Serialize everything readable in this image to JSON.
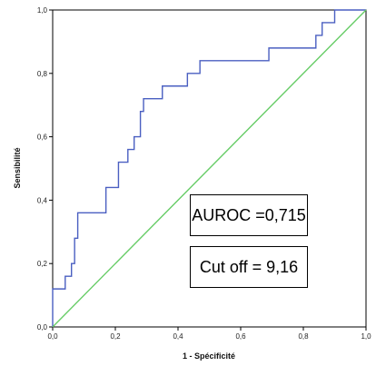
{
  "chart_data": {
    "type": "line",
    "title": "",
    "xlabel": "1 - Spécificité",
    "ylabel": "Sensibilité",
    "xlim": [
      0,
      1
    ],
    "ylim": [
      0,
      1
    ],
    "x_ticks": [
      "0,0",
      "0,2",
      "0,4",
      "0,6",
      "0,8",
      "1,0"
    ],
    "y_ticks": [
      "0,0",
      "0,2",
      "0,4",
      "0,6",
      "0,8",
      "1,0"
    ],
    "grid": false,
    "series": [
      {
        "color": "#4a5fc1",
        "step": true,
        "points": [
          [
            0.0,
            0.0
          ],
          [
            0.0,
            0.12
          ],
          [
            0.04,
            0.12
          ],
          [
            0.04,
            0.16
          ],
          [
            0.06,
            0.16
          ],
          [
            0.06,
            0.2
          ],
          [
            0.07,
            0.2
          ],
          [
            0.07,
            0.28
          ],
          [
            0.08,
            0.28
          ],
          [
            0.08,
            0.36
          ],
          [
            0.17,
            0.36
          ],
          [
            0.17,
            0.44
          ],
          [
            0.21,
            0.44
          ],
          [
            0.21,
            0.52
          ],
          [
            0.24,
            0.52
          ],
          [
            0.24,
            0.56
          ],
          [
            0.26,
            0.56
          ],
          [
            0.26,
            0.6
          ],
          [
            0.28,
            0.6
          ],
          [
            0.28,
            0.68
          ],
          [
            0.29,
            0.68
          ],
          [
            0.29,
            0.72
          ],
          [
            0.35,
            0.72
          ],
          [
            0.35,
            0.76
          ],
          [
            0.43,
            0.76
          ],
          [
            0.43,
            0.8
          ],
          [
            0.47,
            0.8
          ],
          [
            0.47,
            0.84
          ],
          [
            0.69,
            0.84
          ],
          [
            0.69,
            0.88
          ],
          [
            0.84,
            0.88
          ],
          [
            0.84,
            0.92
          ],
          [
            0.86,
            0.92
          ],
          [
            0.86,
            0.96
          ],
          [
            0.9,
            0.96
          ],
          [
            0.9,
            1.0
          ],
          [
            1.0,
            1.0
          ]
        ]
      },
      {
        "color": "#66cc66",
        "points": [
          [
            0,
            0
          ],
          [
            1,
            1
          ]
        ]
      }
    ],
    "annotations": [
      {
        "id": "auroc",
        "text": "AUROC =0,715"
      },
      {
        "id": "cutoff",
        "text": "Cut off = 9,16"
      }
    ]
  }
}
